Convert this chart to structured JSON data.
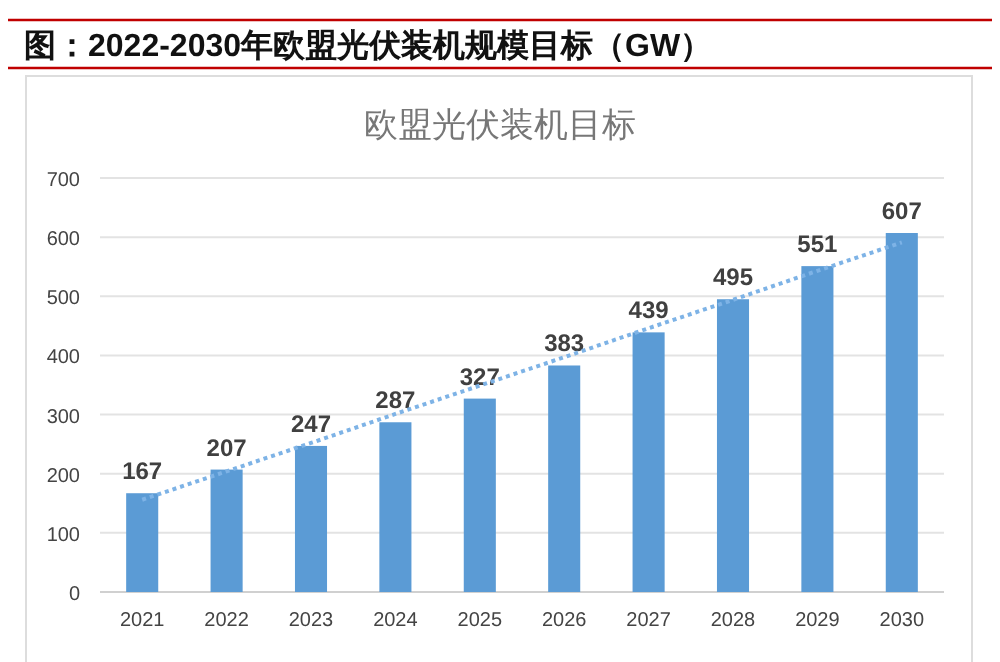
{
  "chart_data": {
    "type": "bar",
    "title": "图：2022-2030年欧盟光伏装机规模目标（GW）",
    "subtitle": "欧盟光伏装机目标",
    "categories": [
      "2021",
      "2022",
      "2023",
      "2024",
      "2025",
      "2026",
      "2027",
      "2028",
      "2029",
      "2030"
    ],
    "series": [
      {
        "color": "#5b9bd5",
        "values": [
          167,
          207,
          247,
          287,
          327,
          383,
          439,
          495,
          551,
          607
        ],
        "value_labels": [
          "167",
          "207",
          "247",
          "287",
          "327",
          "383",
          "439",
          "495",
          "551",
          "607"
        ]
      },
      {
        "type": "line",
        "color": "#7eb3e6",
        "line_style": "dotted",
        "values": [
          156,
          204,
          252,
          301,
          349,
          397,
          446,
          494,
          543,
          591
        ]
      }
    ],
    "ylim": [
      0,
      700
    ],
    "yticks": [
      0,
      100,
      200,
      300,
      400,
      500,
      600,
      700
    ],
    "grid": "y"
  }
}
